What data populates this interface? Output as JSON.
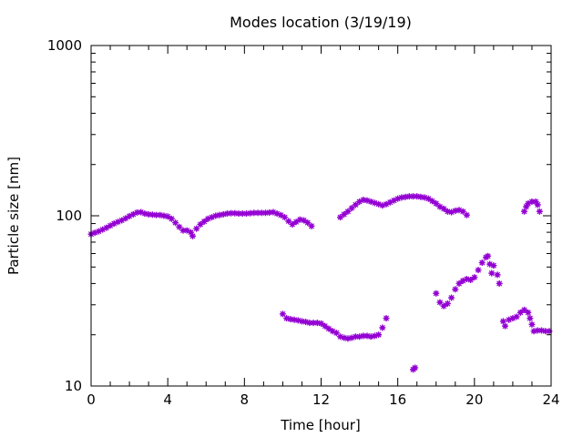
{
  "chart_data": {
    "type": "scatter",
    "title": "Modes location (3/19/19)",
    "xlabel": "Time [hour]",
    "ylabel": "Particle size [nm]",
    "xlim": [
      0,
      24
    ],
    "ylim": [
      10,
      1000
    ],
    "yscale": "log",
    "x_ticks": [
      "0",
      "4",
      "8",
      "12",
      "16",
      "20",
      "24"
    ],
    "y_ticks": [
      "10",
      "100",
      "1000"
    ],
    "grid": false,
    "legend": "none",
    "marker_color": "#9400d3",
    "series": [
      {
        "points": [
          [
            0.0,
            78
          ],
          [
            0.2,
            79.5
          ],
          [
            0.4,
            81
          ],
          [
            0.6,
            83
          ],
          [
            0.8,
            85
          ],
          [
            1.0,
            87.5
          ],
          [
            1.2,
            90
          ],
          [
            1.4,
            92
          ],
          [
            1.6,
            94
          ],
          [
            1.8,
            96.5
          ],
          [
            2.0,
            99.5
          ],
          [
            2.2,
            102
          ],
          [
            2.4,
            104.5
          ],
          [
            2.6,
            105
          ],
          [
            2.8,
            103
          ],
          [
            3.0,
            102
          ],
          [
            3.2,
            101.5
          ],
          [
            3.4,
            101
          ],
          [
            3.6,
            101
          ],
          [
            3.8,
            100
          ],
          [
            4.0,
            99
          ],
          [
            4.2,
            96
          ],
          [
            4.4,
            91
          ],
          [
            4.6,
            86
          ],
          [
            4.8,
            82
          ],
          [
            5.0,
            82
          ],
          [
            5.2,
            80
          ],
          [
            5.3,
            76
          ],
          [
            5.5,
            84
          ],
          [
            5.7,
            89
          ],
          [
            5.9,
            92.5
          ],
          [
            6.1,
            96
          ],
          [
            6.3,
            98
          ],
          [
            6.5,
            100
          ],
          [
            6.7,
            101
          ],
          [
            6.9,
            102
          ],
          [
            7.1,
            103
          ],
          [
            7.3,
            103.5
          ],
          [
            7.5,
            103.5
          ],
          [
            7.7,
            103
          ],
          [
            7.9,
            103
          ],
          [
            8.1,
            103
          ],
          [
            8.3,
            103.5
          ],
          [
            8.5,
            104
          ],
          [
            8.7,
            104
          ],
          [
            8.9,
            104
          ],
          [
            9.1,
            104
          ],
          [
            9.3,
            104.5
          ],
          [
            9.5,
            105
          ],
          [
            9.7,
            103
          ],
          [
            9.9,
            101
          ],
          [
            10.1,
            98
          ],
          [
            10.3,
            93
          ],
          [
            10.5,
            89
          ],
          [
            10.7,
            92
          ],
          [
            10.9,
            95
          ],
          [
            11.1,
            94
          ],
          [
            11.3,
            91
          ],
          [
            11.5,
            87
          ],
          [
            13.0,
            98
          ],
          [
            13.2,
            102
          ],
          [
            13.4,
            106
          ],
          [
            13.6,
            111
          ],
          [
            13.8,
            116
          ],
          [
            14.0,
            121
          ],
          [
            14.2,
            124
          ],
          [
            14.4,
            123
          ],
          [
            14.6,
            121
          ],
          [
            14.8,
            119
          ],
          [
            15.0,
            117
          ],
          [
            15.2,
            115
          ],
          [
            15.4,
            117
          ],
          [
            15.6,
            120
          ],
          [
            15.8,
            123
          ],
          [
            16.0,
            126
          ],
          [
            16.2,
            128
          ],
          [
            16.4,
            129
          ],
          [
            16.6,
            130
          ],
          [
            16.8,
            130
          ],
          [
            17.0,
            130
          ],
          [
            17.2,
            129
          ],
          [
            17.4,
            128
          ],
          [
            17.6,
            126
          ],
          [
            17.8,
            122
          ],
          [
            18.0,
            118
          ],
          [
            18.2,
            113
          ],
          [
            18.4,
            110
          ],
          [
            18.6,
            106
          ],
          [
            18.8,
            105
          ],
          [
            19.0,
            107
          ],
          [
            19.2,
            108
          ],
          [
            19.4,
            106
          ],
          [
            19.6,
            101
          ],
          [
            10.0,
            26.5
          ],
          [
            10.2,
            25
          ],
          [
            10.4,
            24.7
          ],
          [
            10.6,
            24.5
          ],
          [
            10.8,
            24.3
          ],
          [
            11.0,
            24
          ],
          [
            11.2,
            23.8
          ],
          [
            11.4,
            23.5
          ],
          [
            11.6,
            23.5
          ],
          [
            11.8,
            23.5
          ],
          [
            12.0,
            23.3
          ],
          [
            12.2,
            22.5
          ],
          [
            12.4,
            21.7
          ],
          [
            12.6,
            21
          ],
          [
            12.8,
            20.5
          ],
          [
            13.0,
            19.5
          ],
          [
            13.2,
            19.2
          ],
          [
            13.4,
            19
          ],
          [
            13.6,
            19.2
          ],
          [
            13.8,
            19.5
          ],
          [
            14.0,
            19.5
          ],
          [
            14.2,
            19.7
          ],
          [
            14.4,
            19.7
          ],
          [
            14.6,
            19.5
          ],
          [
            14.8,
            19.7
          ],
          [
            15.0,
            20
          ],
          [
            15.2,
            22
          ],
          [
            15.4,
            25
          ],
          [
            16.8,
            12.5
          ],
          [
            16.9,
            12.8
          ],
          [
            18.0,
            35
          ],
          [
            18.2,
            31
          ],
          [
            18.4,
            29.5
          ],
          [
            18.6,
            30.5
          ],
          [
            18.8,
            33
          ],
          [
            19.0,
            37
          ],
          [
            19.2,
            40
          ],
          [
            19.4,
            41.5
          ],
          [
            19.6,
            42.5
          ],
          [
            19.8,
            42
          ],
          [
            20.0,
            43.5
          ],
          [
            20.2,
            48
          ],
          [
            20.4,
            53
          ],
          [
            20.6,
            57
          ],
          [
            20.7,
            58
          ],
          [
            20.8,
            52
          ],
          [
            20.9,
            46
          ],
          [
            21.0,
            51
          ],
          [
            21.2,
            45
          ],
          [
            21.3,
            40
          ],
          [
            21.5,
            24
          ],
          [
            21.6,
            22.5
          ],
          [
            21.8,
            24.5
          ],
          [
            22.0,
            25
          ],
          [
            22.2,
            25.5
          ],
          [
            22.4,
            27
          ],
          [
            22.6,
            28
          ],
          [
            22.8,
            27
          ],
          [
            22.9,
            25
          ],
          [
            23.0,
            23
          ],
          [
            23.1,
            21
          ],
          [
            23.3,
            21.2
          ],
          [
            23.5,
            21.2
          ],
          [
            23.7,
            21
          ],
          [
            23.9,
            21
          ],
          [
            22.6,
            106
          ],
          [
            22.7,
            113
          ],
          [
            22.8,
            118
          ],
          [
            23.0,
            121
          ],
          [
            23.2,
            121
          ],
          [
            23.3,
            116
          ],
          [
            23.4,
            106
          ]
        ]
      }
    ]
  }
}
